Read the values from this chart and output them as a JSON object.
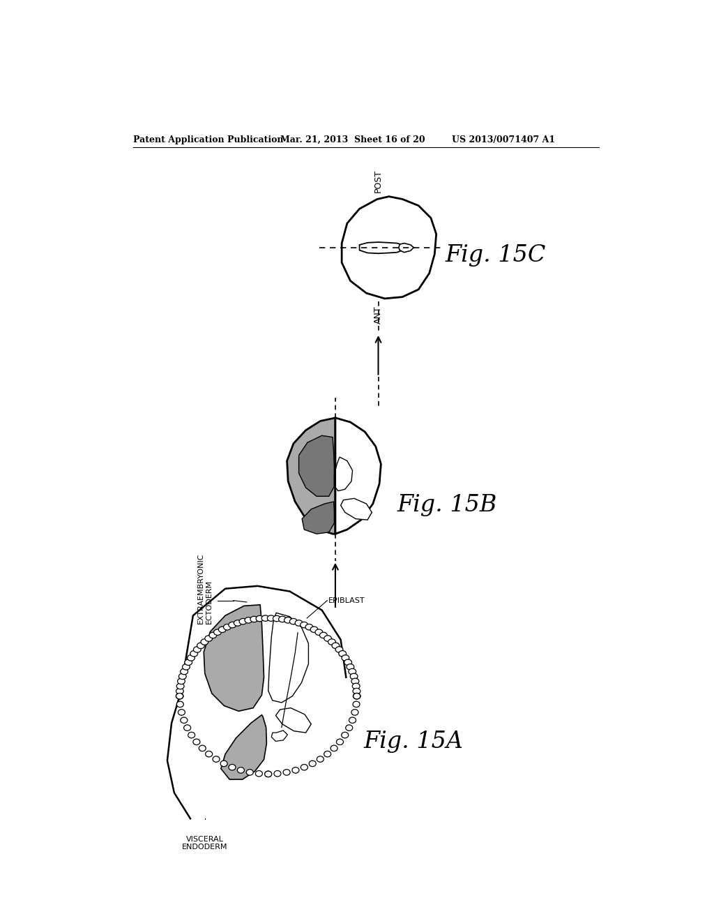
{
  "header_left": "Patent Application Publication",
  "header_mid": "Mar. 21, 2013  Sheet 16 of 20",
  "header_right": "US 2013/0071407 A1",
  "bg_color": "#ffffff",
  "line_color": "#000000",
  "gray_fill": "#aaaaaa",
  "dark_gray": "#777777"
}
